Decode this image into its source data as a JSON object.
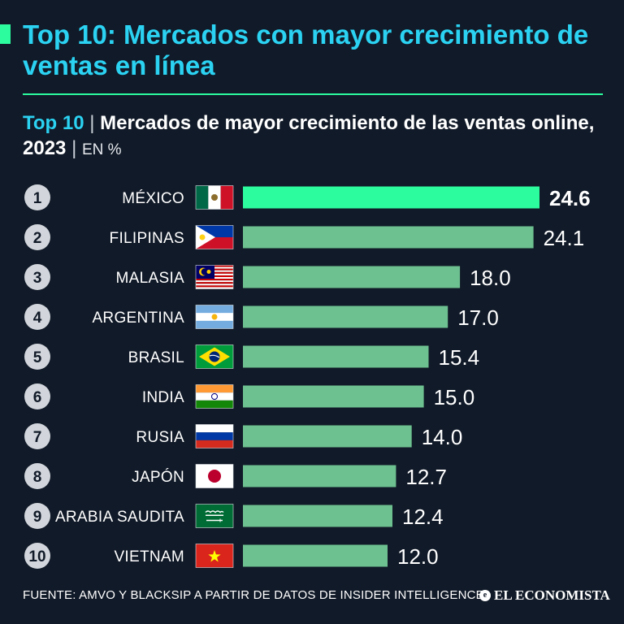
{
  "header": {
    "title": "Top 10: Mercados con mayor crecimiento de ventas en línea",
    "subtitle_top": "Top 10",
    "subtitle_sep": "|",
    "subtitle_main": "Mercados de mayor crecimiento de las ventas online, 2023",
    "subtitle_unit": "EN %"
  },
  "chart_data": {
    "type": "bar",
    "orientation": "horizontal",
    "categories": [
      "MÉXICO",
      "FILIPINAS",
      "MALASIA",
      "ARGENTINA",
      "BRASIL",
      "INDIA",
      "RUSIA",
      "JAPÓN",
      "ARABIA SAUDITA",
      "VIETNAM"
    ],
    "ranks": [
      "1",
      "2",
      "3",
      "4",
      "5",
      "6",
      "7",
      "8",
      "9",
      "10"
    ],
    "values": [
      24.6,
      24.1,
      18.0,
      17.0,
      15.4,
      15.0,
      14.0,
      12.7,
      12.4,
      12.0
    ],
    "value_labels": [
      "24.6",
      "24.1",
      "18.0",
      "17.0",
      "15.4",
      "15.0",
      "14.0",
      "12.7",
      "12.4",
      "12.0"
    ],
    "flags": [
      "flag-mexico",
      "flag-philippines",
      "flag-malaysia",
      "flag-argentina",
      "flag-brazil",
      "flag-india",
      "flag-russia",
      "flag-japan",
      "flag-saudi-arabia",
      "flag-vietnam"
    ],
    "xlim": [
      0,
      24.6
    ],
    "grid": false,
    "legend": "none",
    "colors": {
      "highlight_bar": "#2dfc9e",
      "bar": "#6dc190",
      "rank_circle": "#d2d6dc"
    }
  },
  "footer": {
    "source": "FUENTE: AMVO Y BLACKSIP A PARTIR DE DATOS DE INSIDER INTELLIGENCE",
    "logo": "EL ECONOMISTA"
  },
  "colors": {
    "background": "#111a28",
    "title": "#2bd2f2",
    "accent": "#2dfc9e"
  }
}
